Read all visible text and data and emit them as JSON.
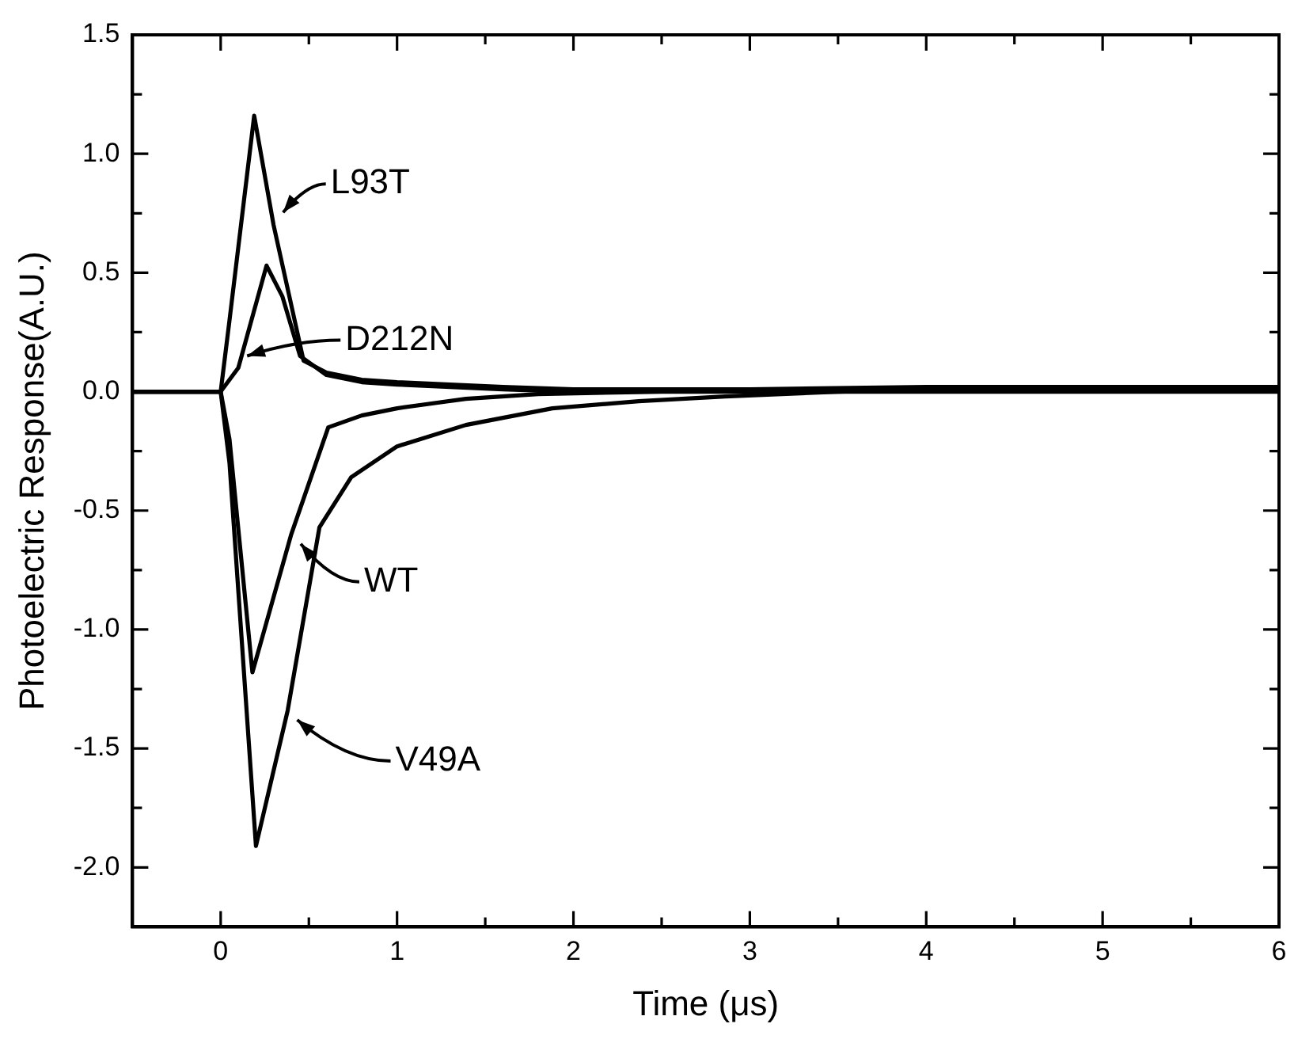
{
  "chart_data": {
    "type": "line",
    "xlabel": "Time (μs)",
    "ylabel": "Photoelectric Response(A.U.)",
    "xlim": [
      -0.5,
      6
    ],
    "ylim": [
      -2.25,
      1.5
    ],
    "xticks": [
      {
        "value": -0.5,
        "label": null
      },
      0,
      {
        "value": 0.5,
        "label": null
      },
      1,
      {
        "value": 1.5,
        "label": null
      },
      2,
      {
        "value": 2.5,
        "label": null
      },
      3,
      {
        "value": 3.5,
        "label": null
      },
      4,
      {
        "value": 4.5,
        "label": null
      },
      5,
      {
        "value": 5.5,
        "label": null
      },
      6
    ],
    "yticks": [
      {
        "value": -2.25,
        "label": null
      },
      {
        "value": -2.0,
        "label": "-2.0"
      },
      {
        "value": -1.75,
        "label": null
      },
      {
        "value": -1.5,
        "label": "-1.5"
      },
      {
        "value": -1.25,
        "label": null
      },
      {
        "value": -1.0,
        "label": "-1.0"
      },
      {
        "value": -0.75,
        "label": null
      },
      {
        "value": -0.5,
        "label": "-0.5"
      },
      {
        "value": -0.25,
        "label": null
      },
      {
        "value": 0,
        "label": "0.0"
      },
      {
        "value": 0.25,
        "label": null
      },
      {
        "value": 0.5,
        "label": "0.5"
      },
      {
        "value": 0.75,
        "label": null
      },
      {
        "value": 1.0,
        "label": "1.0"
      },
      {
        "value": 1.25,
        "label": null
      },
      {
        "value": 1.5,
        "label": "1.5"
      }
    ],
    "annotations": [
      {
        "text": "L93T",
        "x": 0.3,
        "y": 0.7
      },
      {
        "text": "D212N",
        "x": 0.15,
        "y": 0.15
      },
      {
        "text": "WT",
        "x": 0.4,
        "y": -0.6
      },
      {
        "text": "V49A",
        "x": 0.38,
        "y": -1.34
      }
    ],
    "grid": false,
    "legend": false,
    "marker": "none",
    "line_style": "solid",
    "series": [
      {
        "color": "#000000",
        "x": [
          -0.5,
          -0.2,
          0,
          0.05,
          0.19,
          0.3,
          0.47,
          0.6,
          0.8,
          1.0,
          1.3,
          1.6,
          2,
          3,
          4,
          5,
          6
        ],
        "values": [
          0,
          0,
          0,
          0.3,
          1.16,
          0.7,
          0.13,
          0.08,
          0.05,
          0.04,
          0.03,
          0.02,
          0.01,
          0.01,
          0.01,
          0.02,
          0.02
        ]
      },
      {
        "color": "#000000",
        "x": [
          -0.5,
          0,
          0.1,
          0.26,
          0.35,
          0.45,
          0.6,
          0.8,
          1.0,
          1.3,
          1.6,
          2,
          3,
          4,
          5,
          6
        ],
        "values": [
          0,
          0,
          0.1,
          0.53,
          0.4,
          0.15,
          0.07,
          0.04,
          0.03,
          0.02,
          0.01,
          0,
          0.01,
          0.02,
          0.02,
          0.02
        ]
      },
      {
        "color": "#000000",
        "x": [
          -0.5,
          0,
          0.05,
          0.18,
          0.4,
          0.61,
          0.8,
          1.0,
          1.39,
          1.8,
          2.5,
          3,
          4,
          5,
          6
        ],
        "values": [
          0,
          0,
          -0.2,
          -1.18,
          -0.6,
          -0.15,
          -0.1,
          -0.07,
          -0.03,
          -0.01,
          0,
          0,
          0,
          0,
          0
        ]
      },
      {
        "color": "#000000",
        "x": [
          -0.5,
          0,
          0.05,
          0.2,
          0.38,
          0.56,
          0.74,
          1.0,
          1.39,
          1.88,
          2.37,
          2.86,
          3.5,
          4,
          5,
          6
        ],
        "values": [
          0,
          0,
          -0.3,
          -1.91,
          -1.34,
          -0.57,
          -0.36,
          -0.23,
          -0.14,
          -0.07,
          -0.04,
          -0.02,
          0,
          0.01,
          0.01,
          0.01
        ]
      }
    ]
  }
}
